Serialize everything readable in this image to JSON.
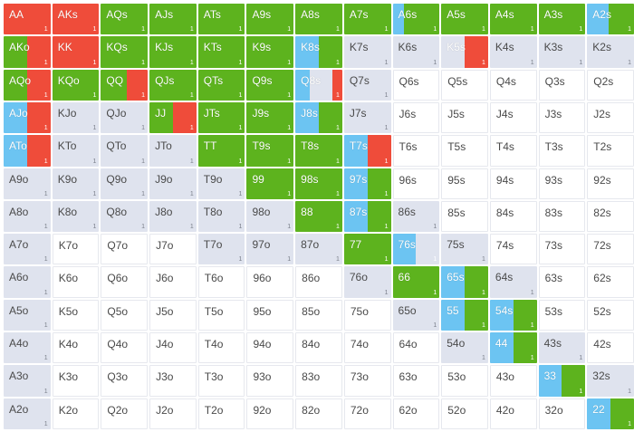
{
  "colors": {
    "raise": "#ef4c3a",
    "call": "#5db31e",
    "mix": "#6cc4f2",
    "fold": "#dfe3ee",
    "empty": "#ffffff"
  },
  "cell_count_label": "1",
  "rows": [
    [
      {
        "label": "AA",
        "r": 1
      },
      {
        "label": "AKs",
        "r": 1
      },
      {
        "label": "AQs",
        "c": 1
      },
      {
        "label": "AJs",
        "c": 1
      },
      {
        "label": "ATs",
        "c": 1
      },
      {
        "label": "A9s",
        "c": 1
      },
      {
        "label": "A8s",
        "c": 1
      },
      {
        "label": "A7s",
        "c": 1
      },
      {
        "label": "A6s",
        "b": 0.25,
        "c": 0.75
      },
      {
        "label": "A5s",
        "c": 1
      },
      {
        "label": "A4s",
        "c": 1
      },
      {
        "label": "A3s",
        "c": 1
      },
      {
        "label": "A2s",
        "b": 0.45,
        "c": 0.55
      }
    ],
    [
      {
        "label": "AKo",
        "c": 0.5,
        "r": 0.5
      },
      {
        "label": "KK",
        "r": 1
      },
      {
        "label": "KQs",
        "c": 1
      },
      {
        "label": "KJs",
        "c": 1
      },
      {
        "label": "KTs",
        "c": 1
      },
      {
        "label": "K9s",
        "c": 1
      },
      {
        "label": "K8s",
        "b": 0.5,
        "c": 0.5
      },
      {
        "label": "K7s",
        "f": 1
      },
      {
        "label": "K6s",
        "f": 1
      },
      {
        "label": "K5s",
        "f": 0.5,
        "r": 0.5
      },
      {
        "label": "K4s",
        "f": 1
      },
      {
        "label": "K3s",
        "f": 1
      },
      {
        "label": "K2s",
        "f": 1
      }
    ],
    [
      {
        "label": "AQo",
        "c": 0.5,
        "r": 0.5
      },
      {
        "label": "KQo",
        "c": 1
      },
      {
        "label": "QQ",
        "c": 0.55,
        "r": 0.45
      },
      {
        "label": "QJs",
        "c": 1
      },
      {
        "label": "QTs",
        "c": 1
      },
      {
        "label": "Q9s",
        "c": 1
      },
      {
        "label": "Q8s",
        "b": 0.3,
        "f": 0.5,
        "r": 0.2
      },
      {
        "label": "Q7s",
        "f": 1
      },
      {
        "label": "Q6s"
      },
      {
        "label": "Q5s"
      },
      {
        "label": "Q4s"
      },
      {
        "label": "Q3s"
      },
      {
        "label": "Q2s"
      }
    ],
    [
      {
        "label": "AJo",
        "b": 0.5,
        "r": 0.5
      },
      {
        "label": "KJo",
        "f": 1
      },
      {
        "label": "QJo",
        "f": 1
      },
      {
        "label": "JJ",
        "c": 0.5,
        "r": 0.5
      },
      {
        "label": "JTs",
        "c": 1
      },
      {
        "label": "J9s",
        "c": 1
      },
      {
        "label": "J8s",
        "b": 0.5,
        "c": 0.5
      },
      {
        "label": "J7s",
        "f": 1
      },
      {
        "label": "J6s"
      },
      {
        "label": "J5s"
      },
      {
        "label": "J4s"
      },
      {
        "label": "J3s"
      },
      {
        "label": "J2s"
      }
    ],
    [
      {
        "label": "ATo",
        "b": 0.5,
        "r": 0.5
      },
      {
        "label": "KTo",
        "f": 1
      },
      {
        "label": "QTo",
        "f": 1
      },
      {
        "label": "JTo",
        "f": 1
      },
      {
        "label": "TT",
        "c": 1
      },
      {
        "label": "T9s",
        "c": 1
      },
      {
        "label": "T8s",
        "c": 1
      },
      {
        "label": "T7s",
        "b": 0.5,
        "r": 0.5
      },
      {
        "label": "T6s"
      },
      {
        "label": "T5s"
      },
      {
        "label": "T4s"
      },
      {
        "label": "T3s"
      },
      {
        "label": "T2s"
      }
    ],
    [
      {
        "label": "A9o",
        "f": 1
      },
      {
        "label": "K9o",
        "f": 1
      },
      {
        "label": "Q9o",
        "f": 1
      },
      {
        "label": "J9o",
        "f": 1
      },
      {
        "label": "T9o",
        "f": 1
      },
      {
        "label": "99",
        "c": 1
      },
      {
        "label": "98s",
        "c": 1
      },
      {
        "label": "97s",
        "b": 0.5,
        "c": 0.5
      },
      {
        "label": "96s"
      },
      {
        "label": "95s"
      },
      {
        "label": "94s"
      },
      {
        "label": "93s"
      },
      {
        "label": "92s"
      }
    ],
    [
      {
        "label": "A8o",
        "f": 1
      },
      {
        "label": "K8o",
        "f": 1
      },
      {
        "label": "Q8o",
        "f": 1
      },
      {
        "label": "J8o",
        "f": 1
      },
      {
        "label": "T8o",
        "f": 1
      },
      {
        "label": "98o",
        "f": 1
      },
      {
        "label": "88",
        "c": 1
      },
      {
        "label": "87s",
        "b": 0.5,
        "c": 0.5
      },
      {
        "label": "86s",
        "f": 1
      },
      {
        "label": "85s"
      },
      {
        "label": "84s"
      },
      {
        "label": "83s"
      },
      {
        "label": "82s"
      }
    ],
    [
      {
        "label": "A7o",
        "f": 1
      },
      {
        "label": "K7o"
      },
      {
        "label": "Q7o"
      },
      {
        "label": "J7o"
      },
      {
        "label": "T7o",
        "f": 1
      },
      {
        "label": "97o",
        "f": 1
      },
      {
        "label": "87o",
        "f": 1
      },
      {
        "label": "77",
        "c": 1
      },
      {
        "label": "76s",
        "b": 0.5,
        "f": 0.5
      },
      {
        "label": "75s",
        "f": 1
      },
      {
        "label": "74s"
      },
      {
        "label": "73s"
      },
      {
        "label": "72s"
      }
    ],
    [
      {
        "label": "A6o",
        "f": 1
      },
      {
        "label": "K6o"
      },
      {
        "label": "Q6o"
      },
      {
        "label": "J6o"
      },
      {
        "label": "T6o"
      },
      {
        "label": "96o"
      },
      {
        "label": "86o"
      },
      {
        "label": "76o",
        "f": 1
      },
      {
        "label": "66",
        "c": 1
      },
      {
        "label": "65s",
        "b": 0.5,
        "c": 0.5
      },
      {
        "label": "64s",
        "f": 1
      },
      {
        "label": "63s"
      },
      {
        "label": "62s"
      }
    ],
    [
      {
        "label": "A5o",
        "f": 1
      },
      {
        "label": "K5o"
      },
      {
        "label": "Q5o"
      },
      {
        "label": "J5o"
      },
      {
        "label": "T5o"
      },
      {
        "label": "95o"
      },
      {
        "label": "85o"
      },
      {
        "label": "75o"
      },
      {
        "label": "65o",
        "f": 1
      },
      {
        "label": "55",
        "b": 0.5,
        "c": 0.5
      },
      {
        "label": "54s",
        "b": 0.5,
        "c": 0.5
      },
      {
        "label": "53s"
      },
      {
        "label": "52s"
      }
    ],
    [
      {
        "label": "A4o",
        "f": 1
      },
      {
        "label": "K4o"
      },
      {
        "label": "Q4o"
      },
      {
        "label": "J4o"
      },
      {
        "label": "T4o"
      },
      {
        "label": "94o"
      },
      {
        "label": "84o"
      },
      {
        "label": "74o"
      },
      {
        "label": "64o"
      },
      {
        "label": "54o",
        "f": 1
      },
      {
        "label": "44",
        "b": 0.5,
        "c": 0.5
      },
      {
        "label": "43s",
        "f": 1
      },
      {
        "label": "42s"
      }
    ],
    [
      {
        "label": "A3o",
        "f": 1
      },
      {
        "label": "K3o"
      },
      {
        "label": "Q3o"
      },
      {
        "label": "J3o"
      },
      {
        "label": "T3o"
      },
      {
        "label": "93o"
      },
      {
        "label": "83o"
      },
      {
        "label": "73o"
      },
      {
        "label": "63o"
      },
      {
        "label": "53o"
      },
      {
        "label": "43o"
      },
      {
        "label": "33",
        "b": 0.5,
        "c": 0.5
      },
      {
        "label": "32s",
        "f": 1
      }
    ],
    [
      {
        "label": "A2o",
        "f": 1
      },
      {
        "label": "K2o"
      },
      {
        "label": "Q2o"
      },
      {
        "label": "J2o"
      },
      {
        "label": "T2o"
      },
      {
        "label": "92o"
      },
      {
        "label": "82o"
      },
      {
        "label": "72o"
      },
      {
        "label": "62o"
      },
      {
        "label": "52o"
      },
      {
        "label": "42o"
      },
      {
        "label": "32o"
      },
      {
        "label": "22",
        "b": 0.5,
        "c": 0.5
      }
    ]
  ]
}
